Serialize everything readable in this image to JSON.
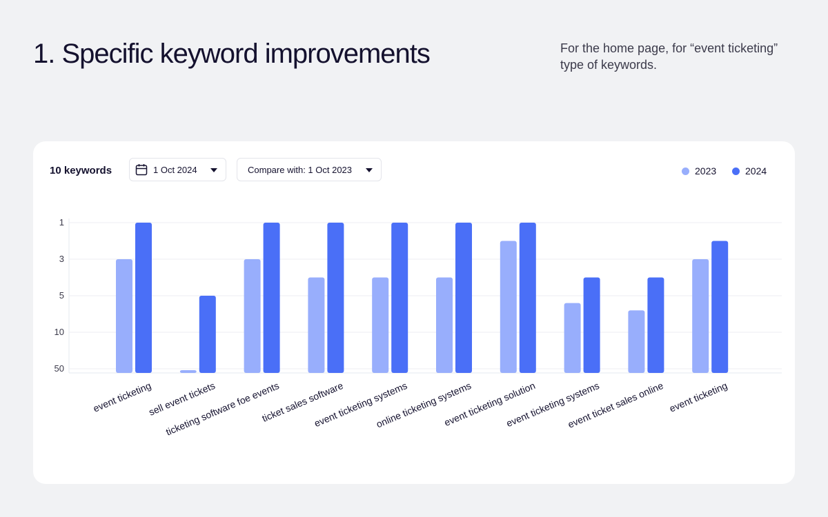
{
  "header": {
    "title": "1. Specific keyword improvements",
    "subtitle": "For the home page, for “event ticketing” type of keywords."
  },
  "toolbar": {
    "keyword_count": "10 keywords",
    "date_label": "1 Oct 2024",
    "compare_label": "Compare with: 1 Oct 2023",
    "icons": {
      "date": "calendar-icon",
      "dropdown": "chevron-down-icon"
    }
  },
  "legend": [
    {
      "name": "2023",
      "color": "#98aefc"
    },
    {
      "name": "2024",
      "color": "#4a6ff7"
    }
  ],
  "chart_data": {
    "type": "bar",
    "orientation": "vertical",
    "y_axis": "rank",
    "y_ticks": [
      "1",
      "3",
      "5",
      "10",
      "50"
    ],
    "y_tick_values": [
      1,
      3,
      5,
      10,
      50
    ],
    "categories": [
      "event ticketing",
      "sell event tickets",
      "ticketing software foe events",
      "ticket sales software",
      "event ticketing systems",
      "online ticketing systems",
      "event ticketing solution",
      "event ticketing systems",
      "event ticket sales online",
      "event ticketing"
    ],
    "series": [
      {
        "name": "2023",
        "color": "#98aefc",
        "values": [
          3,
          50,
          3,
          4,
          4,
          4,
          2,
          6,
          7,
          3
        ]
      },
      {
        "name": "2024",
        "color": "#4a6ff7",
        "values": [
          1,
          5,
          1,
          1,
          1,
          1,
          1,
          4,
          4,
          2
        ]
      }
    ],
    "grid": true,
    "legend_position": "top-right"
  }
}
